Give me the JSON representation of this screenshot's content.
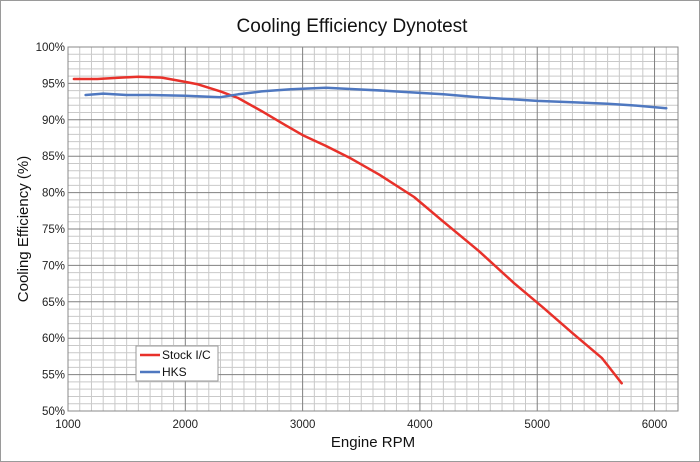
{
  "chart_data": {
    "type": "line",
    "title": "Cooling Efficiency Dynotest",
    "xlabel": "Engine RPM",
    "ylabel": "Cooling Efficiency (%)",
    "xlim": [
      1000,
      6200
    ],
    "ylim": [
      50,
      100
    ],
    "x_ticks": [
      1000,
      2000,
      3000,
      4000,
      5000,
      6000
    ],
    "x_tick_labels": [
      "1000",
      "2000",
      "3000",
      "4000",
      "5000",
      "6000"
    ],
    "y_ticks": [
      50,
      55,
      60,
      65,
      70,
      75,
      80,
      85,
      90,
      95,
      100
    ],
    "y_tick_labels": [
      "50%",
      "55%",
      "60%",
      "65%",
      "70%",
      "75%",
      "80%",
      "85%",
      "90%",
      "95%",
      "100%"
    ],
    "grid": true,
    "legend_position": "bottom-left",
    "series": [
      {
        "name": "Stock I/C",
        "color": "#e8312a",
        "x": [
          1050,
          1250,
          1450,
          1600,
          1800,
          2000,
          2100,
          2300,
          2450,
          2650,
          2850,
          3000,
          3200,
          3400,
          3650,
          3950,
          4200,
          4500,
          4800,
          5050,
          5300,
          5550,
          5720
        ],
        "y": [
          95.6,
          95.6,
          95.8,
          95.9,
          95.8,
          95.2,
          94.9,
          93.9,
          93.0,
          91.2,
          89.3,
          87.9,
          86.4,
          84.8,
          82.5,
          79.4,
          76.0,
          72.0,
          67.6,
          64.2,
          60.7,
          57.3,
          53.8
        ]
      },
      {
        "name": "HKS",
        "color": "#4f78c0",
        "x": [
          1150,
          1300,
          1500,
          1700,
          2000,
          2300,
          2450,
          2650,
          2900,
          3200,
          3450,
          3700,
          4000,
          4200,
          4500,
          4800,
          5000,
          5300,
          5600,
          5800,
          6100
        ],
        "y": [
          93.4,
          93.6,
          93.4,
          93.4,
          93.3,
          93.1,
          93.5,
          93.9,
          94.2,
          94.4,
          94.2,
          94.0,
          93.7,
          93.5,
          93.1,
          92.8,
          92.6,
          92.4,
          92.2,
          92.0,
          91.6
        ]
      }
    ]
  }
}
